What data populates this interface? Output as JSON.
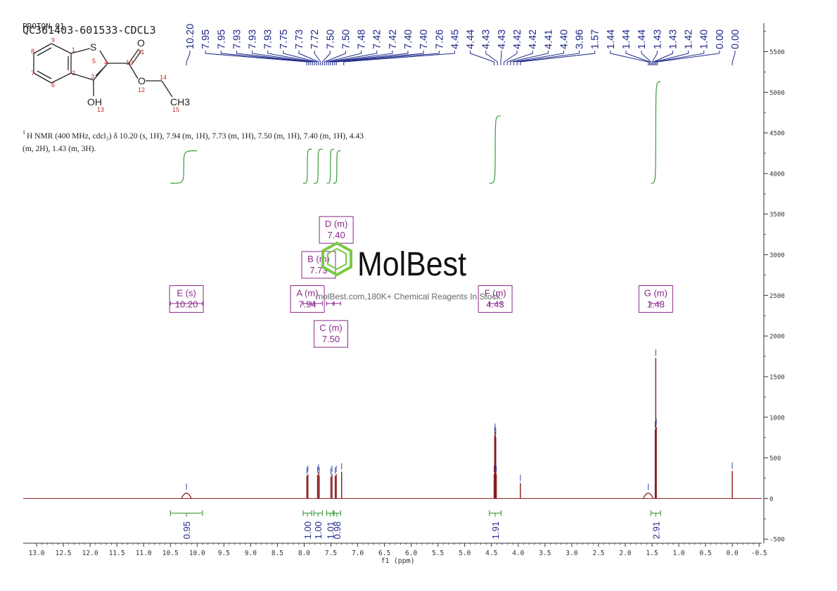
{
  "header": {
    "experiment": "PROTON_01",
    "sample_id": "QC361403-601533-CDCL3"
  },
  "structure": {
    "atoms": {
      "S": "S",
      "O_carbonyl": "O",
      "O_ester": "O",
      "OH": "OH",
      "CH3": "CH3"
    },
    "numbers": [
      "1",
      "2",
      "3",
      "4",
      "5",
      "6",
      "7",
      "8",
      "9",
      "10",
      "11",
      "12",
      "13",
      "14",
      "15"
    ]
  },
  "description": {
    "line1_prefix": "1",
    "line1": "H NMR (400 MHz, cdcl₃) δ 10.20 (s, 1H), 7.94 (m, 1H), 7.73 (m, 1H), 7.50 (m, 1H), 7.40 (m, 1H), 4.43",
    "line2": "(m, 2H), 1.43 (m, 3H)."
  },
  "watermark": {
    "brand": "MolBest",
    "tagline": "molBest.com,180K+ Chemical Reagents In Stock."
  },
  "colors": {
    "spectrum": "#8b1a1a",
    "peak_label": "#1f2a8a",
    "integral": "#3a9a3a",
    "multiplet": "#8a2a8a",
    "axis": "#333333",
    "logo_green": "#7ac943"
  },
  "chart_data": {
    "type": "line",
    "xlabel": "f1 (ppm)",
    "x_range": [
      13.25,
      -0.55
    ],
    "x_ticks": [
      "13.0",
      "12.5",
      "12.0",
      "11.5",
      "11.0",
      "10.5",
      "10.0",
      "9.5",
      "9.0",
      "8.5",
      "8.0",
      "7.5",
      "7.0",
      "6.5",
      "6.0",
      "5.5",
      "5.0",
      "4.5",
      "4.0",
      "3.5",
      "3.0",
      "2.5",
      "2.0",
      "1.5",
      "1.0",
      "0.5",
      "0.0",
      "-0.5"
    ],
    "x_tick_values": [
      13.0,
      12.5,
      12.0,
      11.5,
      11.0,
      10.5,
      10.0,
      9.5,
      9.0,
      8.5,
      8.0,
      7.5,
      7.0,
      6.5,
      6.0,
      5.5,
      5.0,
      4.5,
      4.0,
      3.5,
      3.0,
      2.5,
      2.0,
      1.5,
      1.0,
      0.5,
      0.0,
      -0.5
    ],
    "y_range": [
      -550,
      5850
    ],
    "y_ticks": [
      "5500",
      "5000",
      "4500",
      "4000",
      "3500",
      "3000",
      "2500",
      "2000",
      "1500",
      "1000",
      "500",
      "0",
      "-500"
    ],
    "y_tick_values": [
      5500,
      5000,
      4500,
      4000,
      3500,
      3000,
      2500,
      2000,
      1500,
      1000,
      500,
      0,
      -500
    ],
    "peaks": [
      {
        "ppm": 10.2,
        "height": 80
      },
      {
        "ppm": 7.95,
        "height": 280
      },
      {
        "ppm": 7.93,
        "height": 300
      },
      {
        "ppm": 7.75,
        "height": 290
      },
      {
        "ppm": 7.73,
        "height": 320
      },
      {
        "ppm": 7.72,
        "height": 280
      },
      {
        "ppm": 7.5,
        "height": 270
      },
      {
        "ppm": 7.48,
        "height": 300
      },
      {
        "ppm": 7.42,
        "height": 280
      },
      {
        "ppm": 7.4,
        "height": 300
      },
      {
        "ppm": 7.3,
        "height": 330
      },
      {
        "ppm": 4.45,
        "height": 300
      },
      {
        "ppm": 4.44,
        "height": 780
      },
      {
        "ppm": 4.43,
        "height": 820
      },
      {
        "ppm": 4.42,
        "height": 760
      },
      {
        "ppm": 4.41,
        "height": 300
      },
      {
        "ppm": 3.96,
        "height": 190
      },
      {
        "ppm": 1.57,
        "height": 80
      },
      {
        "ppm": 1.44,
        "height": 850
      },
      {
        "ppm": 1.43,
        "height": 1730
      },
      {
        "ppm": 1.42,
        "height": 880
      },
      {
        "ppm": 0.0,
        "height": 340
      }
    ],
    "peak_labels": [
      "10.20",
      "7.95",
      "7.95",
      "7.93",
      "7.93",
      "7.93",
      "7.75",
      "7.73",
      "7.72",
      "7.50",
      "7.50",
      "7.48",
      "7.42",
      "7.42",
      "7.40",
      "7.40",
      "7.26",
      "4.45",
      "4.44",
      "4.43",
      "4.43",
      "4.42",
      "4.42",
      "4.41",
      "4.40",
      "3.96",
      "1.57",
      "1.44",
      "1.44",
      "1.44",
      "1.43",
      "1.43",
      "1.42",
      "1.40",
      "0.00",
      "0.00"
    ],
    "peak_label_groups": [
      {
        "labels": 1,
        "from": 10.2,
        "to": 10.2
      },
      {
        "labels": 16,
        "from": 7.95,
        "to": 7.4
      },
      {
        "labels": 1,
        "from": 7.26,
        "to": 7.26
      },
      {
        "labels": 9,
        "from": 4.45,
        "to": 3.96
      },
      {
        "labels": 8,
        "from": 1.57,
        "to": 1.4
      },
      {
        "labels": 2,
        "from": 0.0,
        "to": 0.0
      }
    ],
    "integrals": [
      {
        "from": 10.5,
        "to": 9.9,
        "value": "0.95"
      },
      {
        "from": 8.02,
        "to": 7.86,
        "value": "1.00"
      },
      {
        "from": 7.82,
        "to": 7.66,
        "value": "1.00"
      },
      {
        "from": 7.58,
        "to": 7.44,
        "value": "1.01"
      },
      {
        "from": 7.46,
        "to": 7.32,
        "value": "0.98"
      },
      {
        "from": 4.54,
        "to": 4.32,
        "value": "1.91"
      },
      {
        "from": 1.52,
        "to": 1.34,
        "value": "2.91"
      }
    ],
    "integral_curves": [
      {
        "from": 10.5,
        "to": 10.0,
        "rise": 400
      },
      {
        "from": 8.02,
        "to": 7.86,
        "rise": 420
      },
      {
        "from": 7.82,
        "to": 7.66,
        "rise": 420
      },
      {
        "from": 7.58,
        "to": 7.44,
        "rise": 420
      },
      {
        "from": 7.46,
        "to": 7.32,
        "rise": 400
      },
      {
        "from": 4.54,
        "to": 4.32,
        "rise": 830
      },
      {
        "from": 1.52,
        "to": 1.34,
        "rise": 1250
      }
    ],
    "multiplets": [
      {
        "name": "E (s)",
        "value": "10.20",
        "ppm": 10.2,
        "from": 10.5,
        "to": 9.9,
        "box_y": 2620
      },
      {
        "name": "A (m)",
        "value": "7.94",
        "ppm": 7.94,
        "from": 8.02,
        "to": 7.86,
        "box_y": 2620
      },
      {
        "name": "B (m)",
        "value": "7.73",
        "ppm": 7.73,
        "from": 7.82,
        "to": 7.66,
        "box_y": 3040
      },
      {
        "name": "C (m)",
        "value": "7.50",
        "ppm": 7.5,
        "from": 7.58,
        "to": 7.44,
        "box_y": 2190
      },
      {
        "name": "D (m)",
        "value": "7.40",
        "ppm": 7.4,
        "from": 7.46,
        "to": 7.32,
        "box_y": 3470
      },
      {
        "name": "F (m)",
        "value": "4.43",
        "ppm": 4.43,
        "from": 4.54,
        "to": 4.32,
        "box_y": 2620
      },
      {
        "name": "G (m)",
        "value": "1.43",
        "ppm": 1.43,
        "from": 1.52,
        "to": 1.34,
        "box_y": 2620
      }
    ]
  }
}
